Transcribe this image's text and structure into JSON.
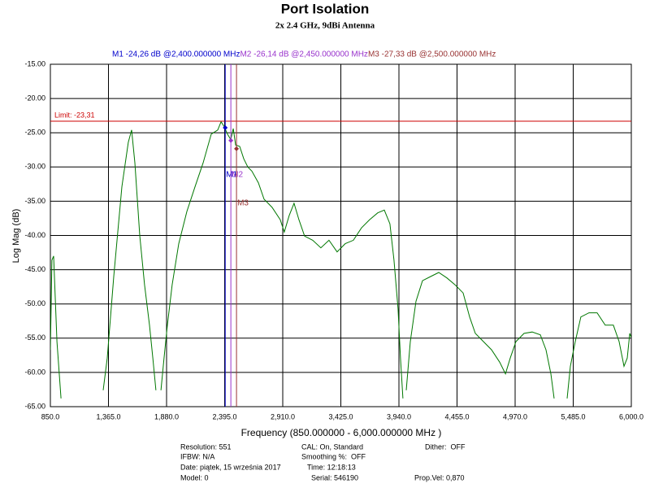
{
  "chart_data": {
    "type": "line",
    "title": "Port Isolation",
    "subtitle": "2x 2.4 GHz, 9dBi Antenna",
    "xlabel": "Frequency (850.000000 - 6,000.000000 MHz )",
    "ylabel": "Log Mag (dB)",
    "xlim": [
      850,
      6000
    ],
    "ylim": [
      -65,
      -15
    ],
    "grid": true,
    "xticks": [
      {
        "value": 850,
        "label": "850.0"
      },
      {
        "value": 1365,
        "label": "1,365.0"
      },
      {
        "value": 1880,
        "label": "1,880.0"
      },
      {
        "value": 2395,
        "label": "2,395.0"
      },
      {
        "value": 2910,
        "label": "2,910.0"
      },
      {
        "value": 3425,
        "label": "3,425.0"
      },
      {
        "value": 3940,
        "label": "3,940.0"
      },
      {
        "value": 4455,
        "label": "4,455.0"
      },
      {
        "value": 4970,
        "label": "4,970.0"
      },
      {
        "value": 5485,
        "label": "5,485.0"
      },
      {
        "value": 6000,
        "label": "6,000.0"
      }
    ],
    "yticks": [
      {
        "value": -15,
        "label": "-15.00"
      },
      {
        "value": -20,
        "label": "-20.00"
      },
      {
        "value": -25,
        "label": "-25.00"
      },
      {
        "value": -30,
        "label": "-30.00"
      },
      {
        "value": -35,
        "label": "-35.00"
      },
      {
        "value": -40,
        "label": "-40.00"
      },
      {
        "value": -45,
        "label": "-45.00"
      },
      {
        "value": -50,
        "label": "-50.00"
      },
      {
        "value": -55,
        "label": "-55.00"
      },
      {
        "value": -60,
        "label": "-60.00"
      },
      {
        "value": -65,
        "label": "-65.00"
      }
    ],
    "x": [
      850,
      864,
      879,
      908,
      944,
      1100,
      1318,
      1354,
      1412,
      1484,
      1541,
      1570,
      1599,
      1642,
      1685,
      1729,
      1758,
      1786,
      1808,
      1830,
      1858,
      1887,
      1930,
      1988,
      2060,
      2132,
      2204,
      2276,
      2334,
      2363,
      2391,
      2420,
      2449,
      2471,
      2492,
      2528,
      2564,
      2600,
      2636,
      2694,
      2744,
      2816,
      2888,
      2924,
      2967,
      3010,
      3053,
      3104,
      3176,
      3248,
      3320,
      3392,
      3464,
      3536,
      3608,
      3680,
      3752,
      3810,
      3860,
      3896,
      3932,
      3954,
      3975,
      3990,
      4005,
      4041,
      4091,
      4149,
      4221,
      4293,
      4365,
      4437,
      4509,
      4567,
      4617,
      4689,
      4761,
      4833,
      4884,
      4927,
      4977,
      5049,
      5121,
      5193,
      5244,
      5287,
      5316,
      5370,
      5431,
      5460,
      5503,
      5553,
      5625,
      5697,
      5769,
      5841,
      5892,
      5935,
      5964,
      5986,
      6000
    ],
    "series": [
      {
        "color": "#007700",
        "values": [
          -56.7,
          -43.6,
          -43,
          -55.5,
          -63.8,
          null,
          -62.6,
          -57.9,
          -46,
          -32.9,
          -26.4,
          -24.6,
          -29.4,
          -40,
          -47.2,
          -53.1,
          -57.9,
          -62.6,
          null,
          -62.6,
          -57.9,
          -53.1,
          -47.2,
          -41.2,
          -36.5,
          -32.9,
          -29.4,
          -25.2,
          -24.6,
          -23.4,
          -24.1,
          -25.2,
          -26,
          -24.4,
          -26.8,
          -27,
          -28.8,
          -30,
          -30.6,
          -32.3,
          -34.7,
          -35.9,
          -37.7,
          -39.5,
          -37.1,
          -35.3,
          -37.7,
          -40.1,
          -40.7,
          -41.8,
          -40.7,
          -42.4,
          -41.2,
          -40.7,
          -38.9,
          -37.7,
          -36.7,
          -36.3,
          -38.3,
          -43.6,
          -50.7,
          -57.9,
          -63.8,
          null,
          -62.6,
          -55.5,
          -49.6,
          -46.6,
          -46,
          -45.4,
          -46.2,
          -47.2,
          -48.4,
          -51.9,
          -54.3,
          -55.5,
          -56.7,
          -58.5,
          -60.2,
          -57.9,
          -55.5,
          -54.3,
          -54.1,
          -54.5,
          -56.7,
          -60.2,
          -63.8,
          null,
          -63.8,
          -59.1,
          -55.5,
          -51.9,
          -51.3,
          -51.3,
          -53.1,
          -53.1,
          -55.5,
          -59.1,
          -57.9,
          -54.3,
          -54.9
        ]
      }
    ],
    "limit": {
      "value": -23.31,
      "label": "Limit: -23,31",
      "color": "#cc0000"
    },
    "markers": [
      {
        "name": "M1",
        "x": 2400,
        "y": -24.26,
        "readout": "M1 -24,26 dB @2,400.000000 MHz",
        "color": "#0000cc"
      },
      {
        "name": "M2",
        "x": 2450,
        "y": -26.14,
        "readout": "M2 -26,14 dB @2,450.000000 MHz",
        "color": "#9933cc"
      },
      {
        "name": "M3",
        "x": 2500,
        "y": -27.33,
        "readout": "M3 -27,33 dB @2,500.000000 MHz",
        "color": "#993333"
      }
    ],
    "info": [
      "Resolution: 551",
      "IFBW: N/A",
      "Date: piątek, 15 września 2017",
      "Model: 0",
      "CAL: On, Standard",
      "Smoothing %:  OFF",
      "Time: 12:18:13",
      "Serial: 546190",
      "Dither:  OFF",
      "Prop.Vel: 0,870"
    ]
  }
}
